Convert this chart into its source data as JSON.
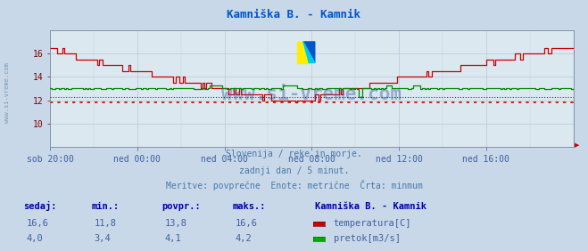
{
  "title": "Kamniška B. - Kamnik",
  "title_color": "#0055cc",
  "bg_color": "#c8d8e8",
  "plot_bg_color": "#dce8f0",
  "grid_color": "#b8c8d8",
  "x_labels": [
    "sob 20:00",
    "ned 00:00",
    "ned 04:00",
    "ned 08:00",
    "ned 12:00",
    "ned 16:00"
  ],
  "x_ticks_pos": [
    0,
    48,
    96,
    144,
    192,
    240
  ],
  "n_points": 289,
  "temp_min_val": 11.8,
  "temp_max_val": 16.6,
  "temp_avg_val": 13.8,
  "temp_current_val": 16.6,
  "flow_min_val": 3.4,
  "flow_max_val": 4.2,
  "flow_avg_val": 4.1,
  "flow_current_val": 4.0,
  "temp_line_color": "#cc0000",
  "temp_minline_color": "#cc0000",
  "flow_line_color": "#008800",
  "flow_minline_color": "#0000cc",
  "watermark": "www.si-vreme.com",
  "watermark_color": "#4060a0",
  "watermark_alpha": 0.45,
  "text1": "Slovenija / reke in morje.",
  "text2": "zadnji dan / 5 minut.",
  "text3": "Meritve: povprečne  Enote: metrične  Črta: minmum",
  "text_color": "#4878a8",
  "legend_title": "Kamniška B. - Kamnik",
  "legend_temp": "temperatura[C]",
  "legend_flow": "pretok[m3/s]",
  "stat_headers": [
    "sedaj:",
    "min.:",
    "povpr.:",
    "maks.:"
  ],
  "stat_temp": [
    "16,6",
    "11,8",
    "13,8",
    "16,6"
  ],
  "stat_flow": [
    "4,0",
    "3,4",
    "4,1",
    "4,2"
  ],
  "ylim_temp": [
    8.0,
    18.0
  ],
  "yticks_temp": [
    10,
    12,
    14,
    16
  ],
  "ylim_flow": [
    0.0,
    8.0
  ],
  "sidebar_text": "www.si-vreme.com",
  "sidebar_color": "#7090b0"
}
